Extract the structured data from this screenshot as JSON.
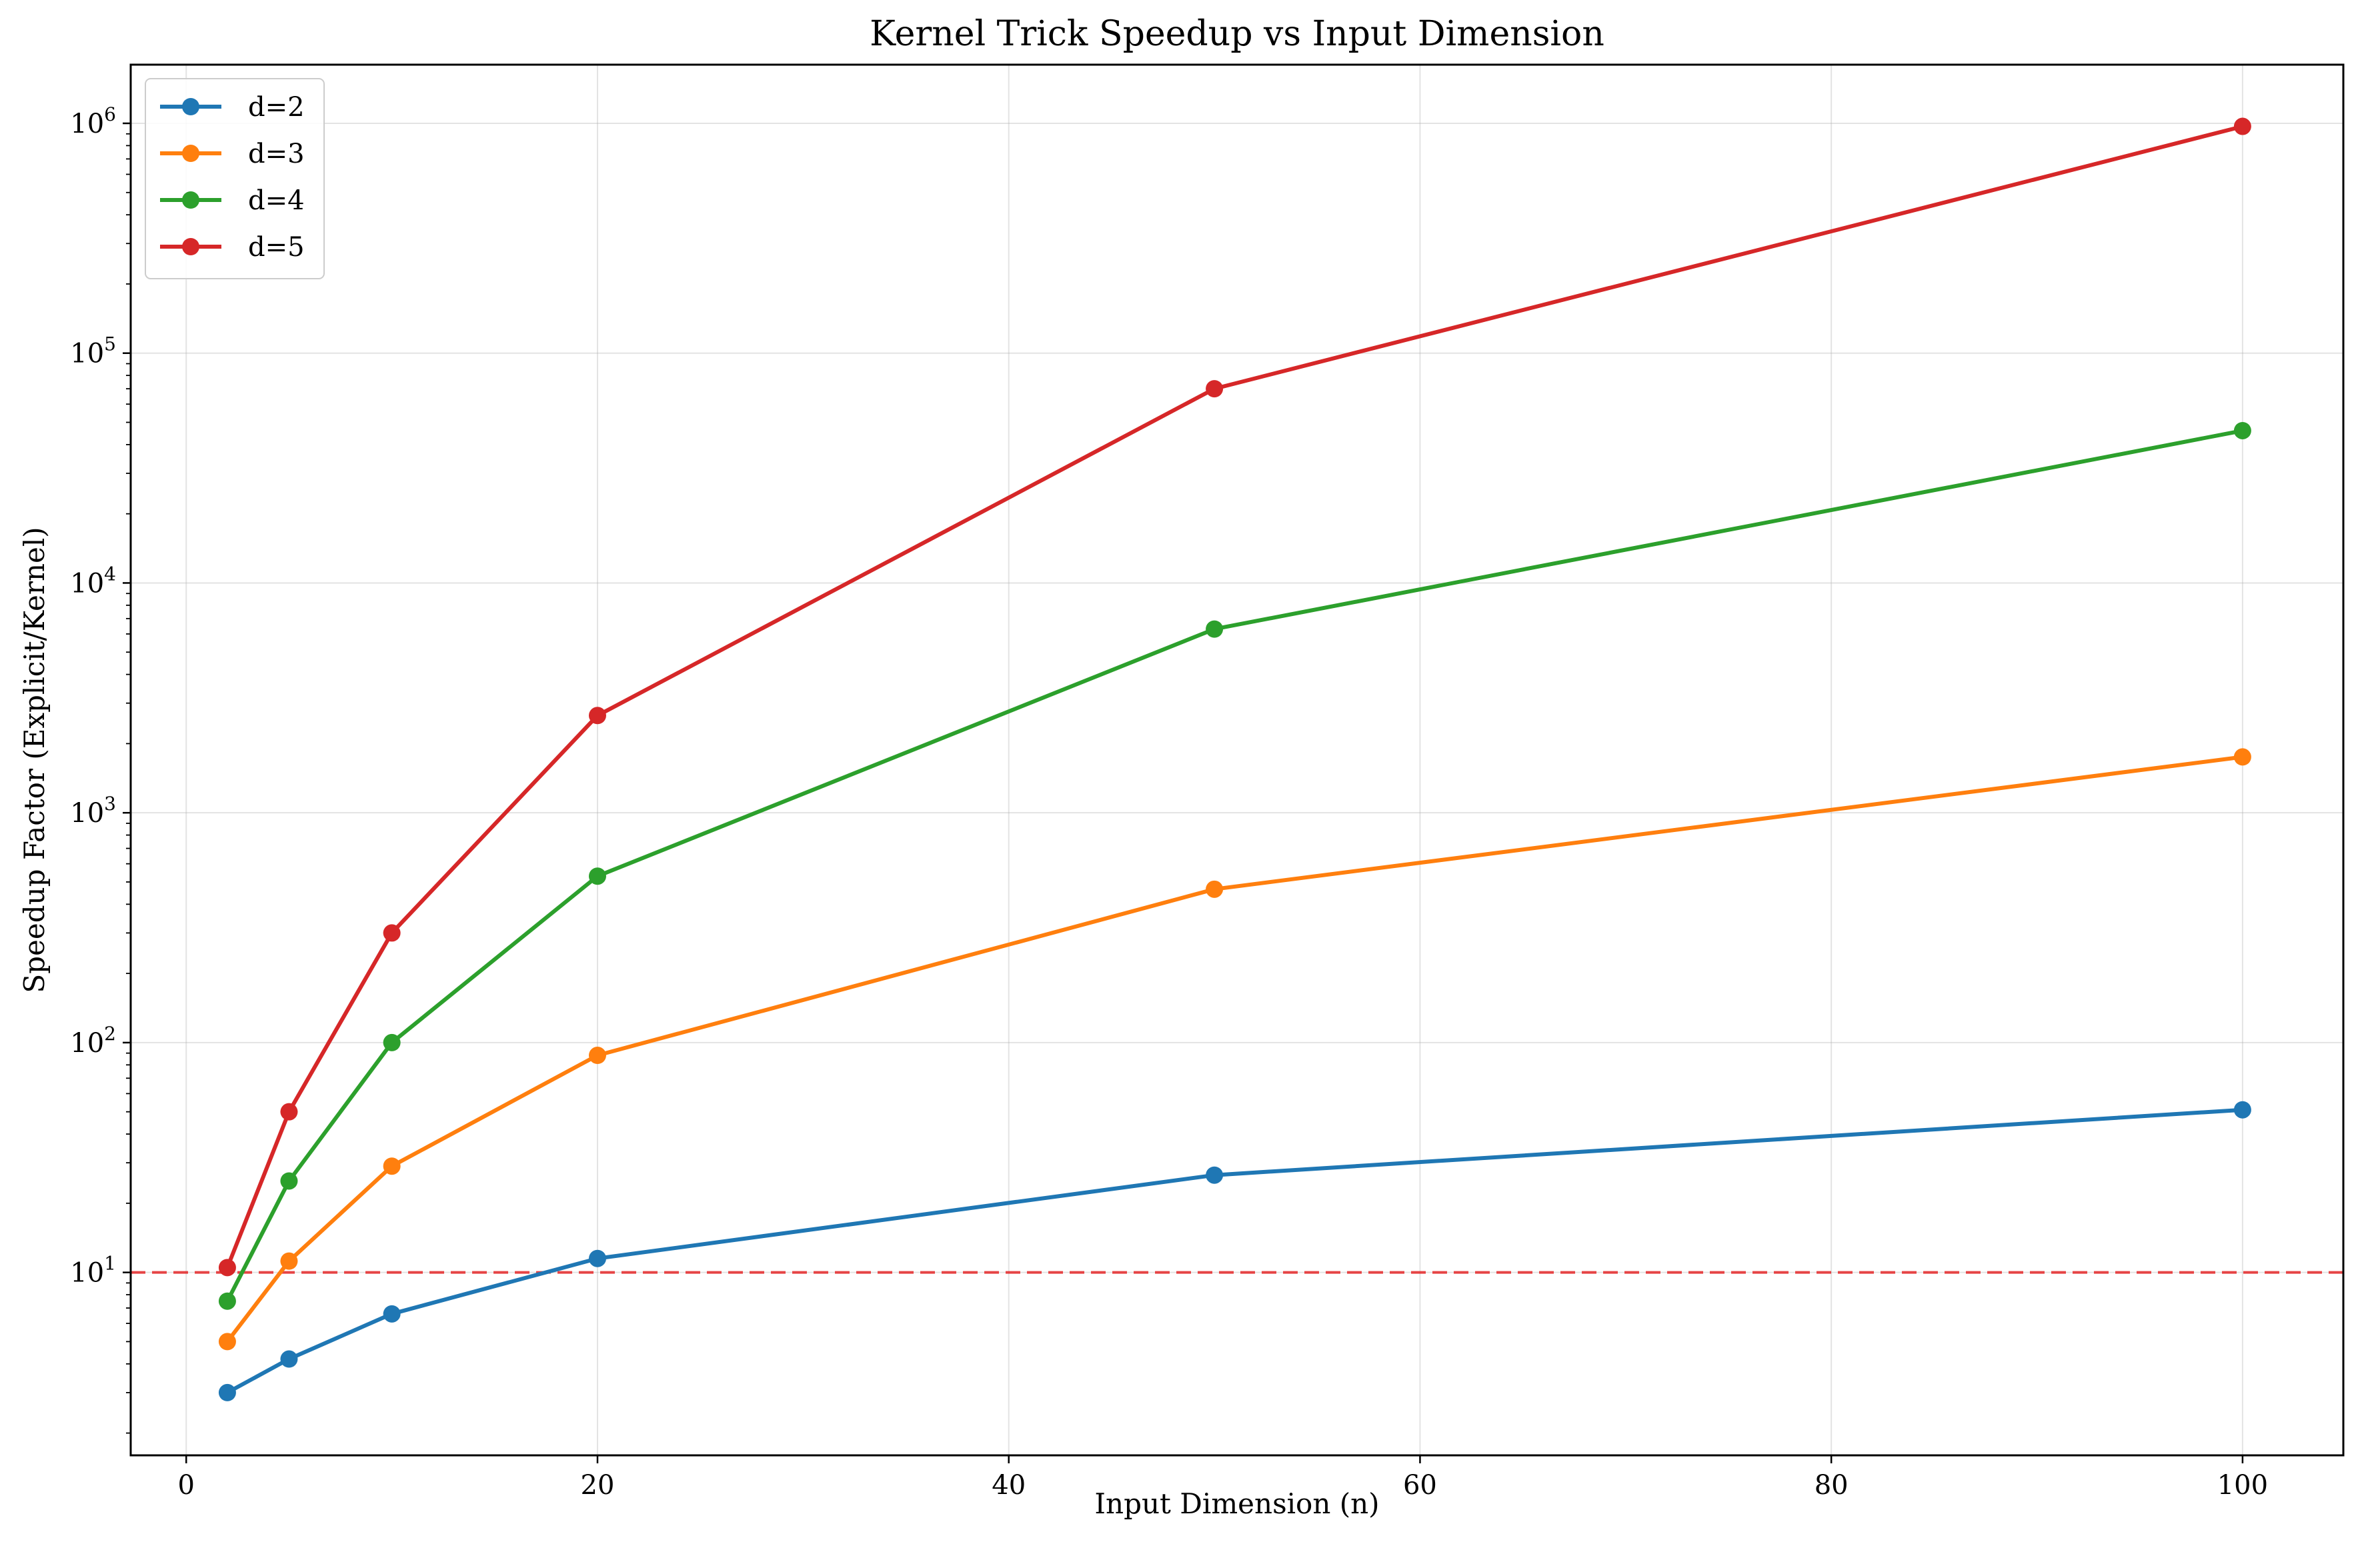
{
  "chart_data": {
    "type": "line",
    "title": "Kernel Trick Speedup vs Input Dimension",
    "xlabel": "Input Dimension (n)",
    "ylabel": "Speedup Factor (Explicit/Kernel)",
    "xlim": [
      -2.7,
      104.9
    ],
    "ylim": [
      1.6,
      1800000
    ],
    "yscale": "log",
    "grid": true,
    "legend_position": "upper-left",
    "x": [
      2,
      5,
      10,
      20,
      50,
      100
    ],
    "x_ticks": [
      {
        "value": 0,
        "label": "0"
      },
      {
        "value": 20,
        "label": "20"
      },
      {
        "value": 40,
        "label": "40"
      },
      {
        "value": 60,
        "label": "60"
      },
      {
        "value": 80,
        "label": "80"
      },
      {
        "value": 100,
        "label": "100"
      }
    ],
    "y_ticks": [
      {
        "value": 10,
        "base": "10",
        "exp": "1"
      },
      {
        "value": 100,
        "base": "10",
        "exp": "2"
      },
      {
        "value": 1000,
        "base": "10",
        "exp": "3"
      },
      {
        "value": 10000,
        "base": "10",
        "exp": "4"
      },
      {
        "value": 100000,
        "base": "10",
        "exp": "5"
      },
      {
        "value": 1000000,
        "base": "10",
        "exp": "6"
      }
    ],
    "series": [
      {
        "name": "d=2",
        "color": "#1f77b4",
        "values": [
          3.0,
          4.2,
          6.6,
          11.5,
          26.5,
          51.0
        ]
      },
      {
        "name": "d=3",
        "color": "#ff7f0e",
        "values": [
          5.0,
          11.2,
          29.0,
          88.0,
          465.0,
          1750.0
        ]
      },
      {
        "name": "d=4",
        "color": "#2ca02c",
        "values": [
          7.5,
          25.0,
          100.0,
          530.0,
          6300.0,
          46000.0
        ]
      },
      {
        "name": "d=5",
        "color": "#d62728",
        "values": [
          10.5,
          50.0,
          300.0,
          2650.0,
          70000.0,
          970000.0
        ]
      }
    ],
    "reference_line": {
      "y": 10,
      "color": "#e41a1c",
      "style": "dashed"
    }
  }
}
